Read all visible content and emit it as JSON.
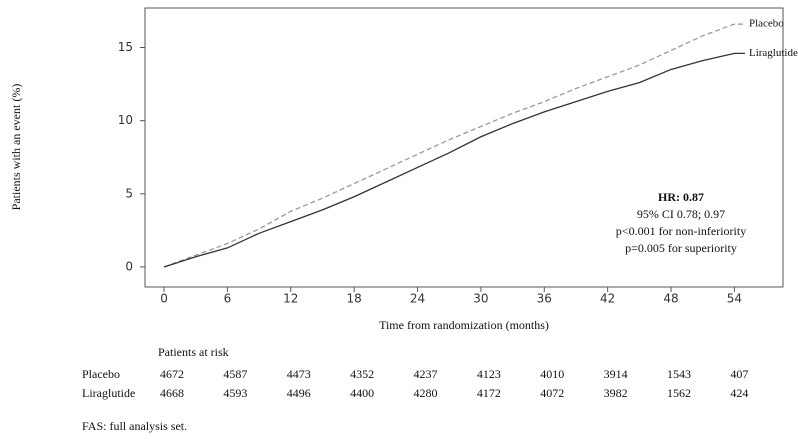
{
  "chart_data": {
    "type": "line",
    "xlabel": "Time from randomization (months)",
    "ylabel": "Patients with an event (%)",
    "x": [
      0,
      3,
      6,
      9,
      12,
      15,
      18,
      21,
      24,
      27,
      30,
      33,
      36,
      39,
      42,
      45,
      48,
      51,
      54,
      55
    ],
    "series": [
      {
        "name": "Placebo",
        "color": "#999999",
        "dashed": true,
        "values": [
          0,
          0.8,
          1.6,
          2.6,
          3.8,
          4.7,
          5.7,
          6.7,
          7.7,
          8.7,
          9.6,
          10.5,
          11.3,
          12.2,
          13.0,
          13.8,
          14.8,
          15.8,
          16.6,
          16.6
        ]
      },
      {
        "name": "Liraglutide",
        "color": "#333333",
        "dashed": false,
        "values": [
          0,
          0.7,
          1.3,
          2.3,
          3.1,
          3.9,
          4.8,
          5.8,
          6.8,
          7.8,
          8.9,
          9.8,
          10.6,
          11.3,
          12.0,
          12.6,
          13.5,
          14.1,
          14.6,
          14.6
        ]
      }
    ],
    "xlim": [
      -1.8,
      58.6
    ],
    "xticks": [
      0,
      6,
      12,
      18,
      24,
      30,
      36,
      42,
      48,
      54
    ],
    "ylim": [
      -1.37,
      17.7
    ],
    "yticks": [
      0,
      5,
      10,
      15
    ],
    "grid": false,
    "annotations": [
      "HR: 0.87",
      "95% CI 0.78; 0.97",
      "p<0.001 for non-inferiority",
      "p=0.005 for superiority"
    ],
    "risk_table": {
      "title": "Patients at risk",
      "rows": [
        {
          "name": "Placebo",
          "values": [
            4672,
            4587,
            4473,
            4352,
            4237,
            4123,
            4010,
            3914,
            1543,
            407
          ]
        },
        {
          "name": "Liraglutide",
          "values": [
            4668,
            4593,
            4496,
            4400,
            4280,
            4172,
            4072,
            3982,
            1562,
            424
          ]
        }
      ]
    }
  },
  "footnote": "FAS: full analysis set."
}
